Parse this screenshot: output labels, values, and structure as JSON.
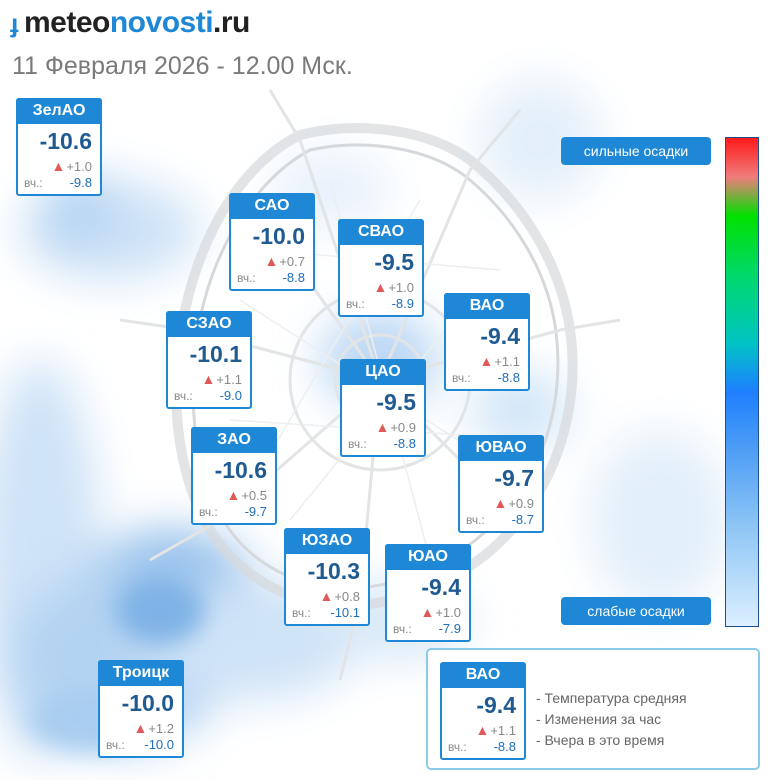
{
  "header": {
    "logo_prefix": "ɟ",
    "logo_part1": "meteo",
    "logo_part2": "novosti",
    "logo_part3": ".ru",
    "date_line": "11 Февраля 2026 - 12.00 Мск."
  },
  "units": {
    "yesterday_label": "вч.:",
    "up_arrow": "▲"
  },
  "districts": [
    {
      "name": "ЗелАО",
      "temp": "-10.6",
      "delta": "+1.0",
      "yesterday": "-9.8"
    },
    {
      "name": "САО",
      "temp": "-10.0",
      "delta": "+0.7",
      "yesterday": "-8.8"
    },
    {
      "name": "СВАО",
      "temp": "-9.5",
      "delta": "+1.0",
      "yesterday": "-8.9"
    },
    {
      "name": "ВАО",
      "temp": "-9.4",
      "delta": "+1.1",
      "yesterday": "-8.8"
    },
    {
      "name": "СЗАО",
      "temp": "-10.1",
      "delta": "+1.1",
      "yesterday": "-9.0"
    },
    {
      "name": "ЦАО",
      "temp": "-9.5",
      "delta": "+0.9",
      "yesterday": "-8.8"
    },
    {
      "name": "ЗАО",
      "temp": "-10.6",
      "delta": "+0.5",
      "yesterday": "-9.7"
    },
    {
      "name": "ЮВАО",
      "temp": "-9.7",
      "delta": "+0.9",
      "yesterday": "-8.7"
    },
    {
      "name": "ЮЗАО",
      "temp": "-10.3",
      "delta": "+0.8",
      "yesterday": "-10.1"
    },
    {
      "name": "ЮАО",
      "temp": "-9.4",
      "delta": "+1.0",
      "yesterday": "-7.9"
    },
    {
      "name": "Троицк",
      "temp": "-10.0",
      "delta": "+1.2",
      "yesterday": "-10.0"
    }
  ],
  "precip_scale": {
    "top_label": "сильные осадки",
    "bottom_label": "слабые осадки"
  },
  "legend": {
    "example": {
      "name": "ВАО",
      "temp": "-9.4",
      "delta": "+1.1",
      "yesterday": "-8.8"
    },
    "line1": "- Температура средняя",
    "line2": "- Изменения за час",
    "line3": "- Вчера в это время"
  },
  "colors": {
    "brand_blue": "#1e88d6",
    "temp_text": "#1f5a91",
    "rise_arrow": "#e05a5a"
  }
}
